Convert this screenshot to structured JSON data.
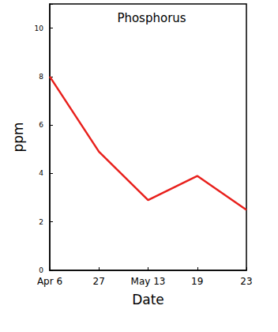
{
  "chart_data": {
    "type": "line",
    "title": "Phosphorus",
    "x_label": "Date",
    "y_label": "ppm",
    "categories": [
      "Apr 6",
      "27",
      "May 13",
      "19",
      "23"
    ],
    "values": [
      8,
      4.9,
      2.9,
      3.9,
      2.5
    ],
    "color": "#e8201c",
    "ylim": [
      0,
      11
    ],
    "yticks": [
      0,
      2,
      4,
      6,
      8,
      10
    ],
    "grid": false
  }
}
